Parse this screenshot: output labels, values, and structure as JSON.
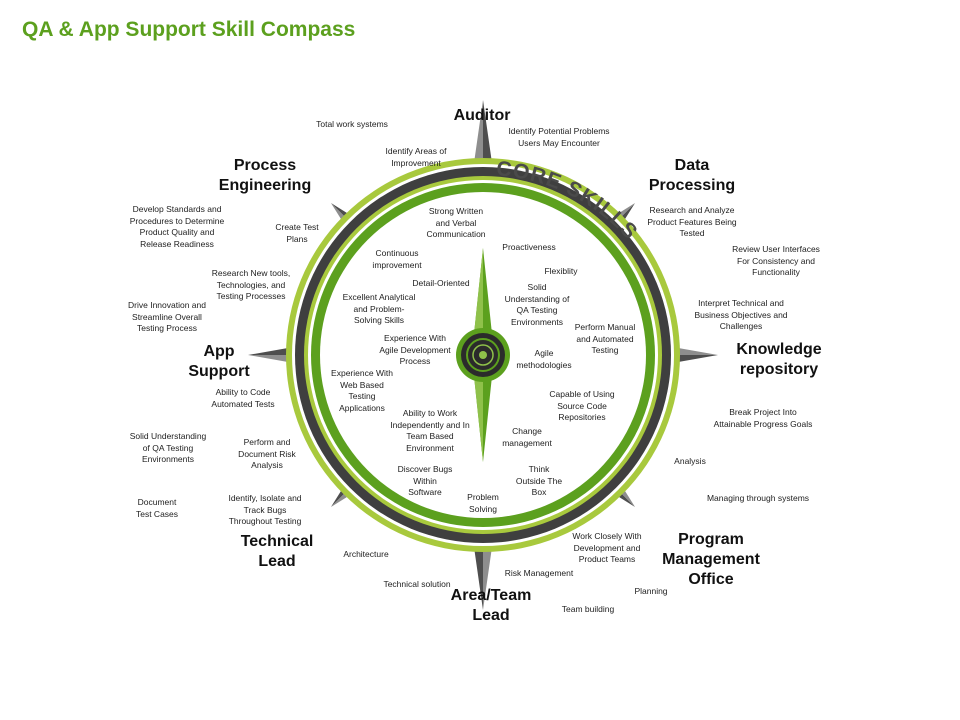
{
  "title": "QA & App Support Skill Compass",
  "colors": {
    "accent": "#5ca01e",
    "light_green": "#a8c93d",
    "dark_ring": "#3f3f3f",
    "needle": "#6d6d6d"
  },
  "core_label": "CORE SKILLS",
  "directions": [
    {
      "label": "Auditor"
    },
    {
      "label": "Data\nProcessing"
    },
    {
      "label": "Knowledge\nrepository"
    },
    {
      "label": "Program\nManagement\nOffice"
    },
    {
      "label": "Area/Team\nLead"
    },
    {
      "label": "Technical\nLead"
    },
    {
      "label": "App\nSupport"
    },
    {
      "label": "Process\nEngineering"
    }
  ],
  "outer_skills": [
    {
      "text": "Total work systems"
    },
    {
      "text": "Identify Areas of\nImprovement"
    },
    {
      "text": "Identify Potential Problems\nUsers May Encounter"
    },
    {
      "text": "Research and Analyze\nProduct Features Being\nTested"
    },
    {
      "text": "Review User Interfaces\nFor Consistency and\nFunctionality"
    },
    {
      "text": "Interpret Technical and\nBusiness Objectives and\nChallenges"
    },
    {
      "text": "Break Project Into\nAttainable Progress Goals"
    },
    {
      "text": "Analysis"
    },
    {
      "text": "Managing through systems"
    },
    {
      "text": "Work Closely With\nDevelopment and\nProduct Teams"
    },
    {
      "text": "Planning"
    },
    {
      "text": "Risk Management"
    },
    {
      "text": "Team building"
    },
    {
      "text": "Technical solution"
    },
    {
      "text": "Architecture"
    },
    {
      "text": "Identify, Isolate and\nTrack Bugs\nThroughout  Testing"
    },
    {
      "text": "Document\nTest Cases"
    },
    {
      "text": "Perform  and\nDocument Risk\nAnalysis"
    },
    {
      "text": "Solid Understanding\nof QA Testing\nEnvironments"
    },
    {
      "text": "Ability to Code\nAutomated Tests"
    },
    {
      "text": "Drive Innovation and\nStreamline Overall\nTesting Process"
    },
    {
      "text": "Research New tools,\nTechnologies, and\nTesting Processes"
    },
    {
      "text": "Develop Standards and\nProcedures to Determine\nProduct Quality and\nRelease Readiness"
    },
    {
      "text": "Create Test\nPlans"
    }
  ],
  "core_skills": [
    {
      "text": "Strong Written\nand Verbal\nCommunication"
    },
    {
      "text": "Proactiveness"
    },
    {
      "text": "Flexiblity"
    },
    {
      "text": "Solid\nUnderstanding  of\nQA Testing\nEnvironments"
    },
    {
      "text": "Perform  Manual\nand Automated\nTesting"
    },
    {
      "text": "Agile\nmethodologies"
    },
    {
      "text": "Capable of Using\nSource Code\nRepositories"
    },
    {
      "text": "Change\nmanagement"
    },
    {
      "text": "Think\nOutside The\nBox"
    },
    {
      "text": "Problem\nSolving"
    },
    {
      "text": "Discover Bugs\nWithin\nSoftware"
    },
    {
      "text": "Ability to Work\nIndependently  and In\nTeam Based\nEnvironment"
    },
    {
      "text": "Experience  With\nWeb Based\nTesting\nApplications"
    },
    {
      "text": "Experience With\nAgile Development\nProcess"
    },
    {
      "text": "Excellent Analytical\nand Problem-\nSolving Skills"
    },
    {
      "text": "Detail-Oriented"
    },
    {
      "text": "Continuous\nimprovement"
    }
  ]
}
